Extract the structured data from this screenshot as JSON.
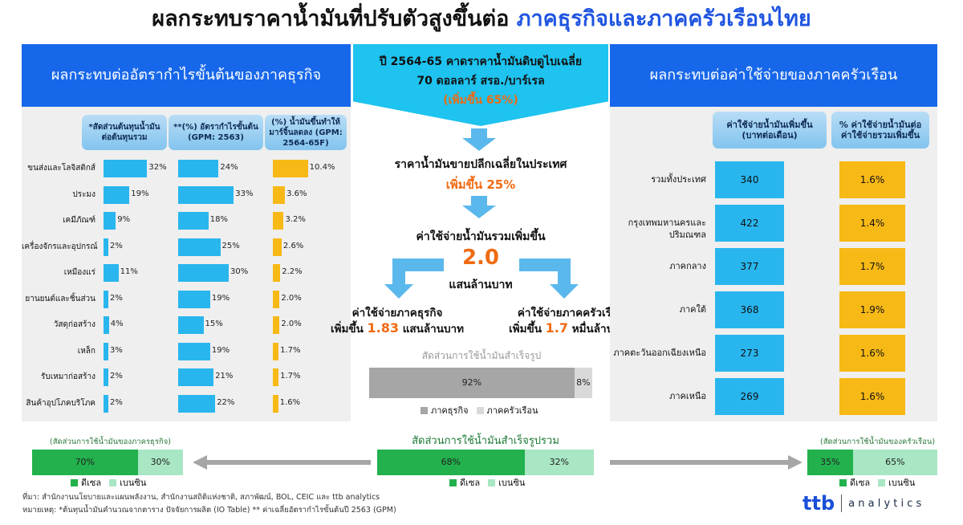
{
  "title": {
    "part1": "ผลกระทบราคาน้ำมันที่ปรับตัวสูงขึ้นต่อ",
    "part2": "ภาคธุรกิจและภาคครัวเรือนไทย"
  },
  "left_panel": {
    "header": "ผลกระทบต่ออัตรากำไรขั้นต้นของภาคธุรกิจ",
    "col1": "*สัดส่วนต้นทุนน้ำมันต่อต้นทุนรวม",
    "col2": "**(%) อัตรากำไรขั้นต้น (GPM: 2563)",
    "col3": "(%) น้ำมันขึ้นทำให้มาร์จิ้นลดลง (GPM: 2564-65F)"
  },
  "right_panel": {
    "header": "ผลกระทบต่อค่าใช้จ่ายของภาคครัวเรือน",
    "col1": "ค่าใช้จ่ายน้ำมันเพิ่มขึ้น (บาทต่อเดือน)",
    "col2": "% ค่าใช้จ่ายน้ำมันต่อค่าใช้จ่ายรวมเพิ่มขึ้น"
  },
  "center": {
    "box_line1": "ปี 2564-65 คาดราคาน้ำมันดิบดูไบเฉลี่ย",
    "box_line2": "70 ดอลลาร์ สรอ./บาร์เรล",
    "box_line3": "(เพิ่มขึ้น 65%)",
    "retail_line1": "ราคาน้ำมันขายปลีกเฉลี่ยในประเทศ",
    "retail_line2": "เพิ่มขึ้น 25%",
    "total_line1": "ค่าใช้จ่ายน้ำมันรวมเพิ่มขึ้น",
    "total_value": "2.0",
    "total_unit": "แสนล้านบาท",
    "biz_line1": "ค่าใช้จ่ายภาคธุรกิจ",
    "biz_prefix": "เพิ่มขึ้น",
    "biz_value": "1.83",
    "biz_unit": "แสนล้านบาท",
    "hh_line1": "ค่าใช้จ่ายภาคครัวเรือน",
    "hh_prefix": "เพิ่มขึ้น",
    "hh_value": "1.7",
    "hh_unit": "หมื่นล้านบาท"
  },
  "bottom": {
    "left_caption": "(สัดส่วนการใช้น้ำมันของภาครธุรกิจ)",
    "right_caption": "(สัดส่วนการใช้น้ำมันของครัวเรือน)"
  },
  "footer": {
    "source": "ที่มา: สำนักงานนโยบายและแผนพลังงาน, สำนักงานสถิติแห่งชาติ, สภาพัฒน์, BOL, CEIC และ ttb analytics",
    "note": "หมายเหตุ:  *ต้นทุนน้ำมันคำนวณจากตาราง ปัจจัยการผลิต (IO Table)  ** ค่าเฉลี่ยอัตรากำไรขั้นต้นปี 2563  (GPM)"
  },
  "logo": {
    "brand": "ttb",
    "text": "a n a l y t i c s"
  },
  "colors": {
    "blue_header": "#1767ea",
    "cyan": "#29b6ee",
    "yellow": "#f7b916",
    "orange": "#ef6b12",
    "green_dark": "#22b14c",
    "green_light": "#a8e6c4",
    "gray_dark": "#a6a6a6",
    "gray_light": "#d9d9d9"
  },
  "chart_data": [
    {
      "type": "table",
      "categories": [
        "ขนส่งและโลจิสติกส์",
        "ประมง",
        "เคมีภัณฑ์",
        "เครื่องจักรและอุปกรณ์",
        "เหมืองแร่",
        "ยานยนต์และชิ้นส่วน",
        "วัสดุก่อสร้าง",
        "เหล็ก",
        "รับเหมาก่อสร้าง",
        "สินค้าอุปโภคบริโภค"
      ],
      "series": [
        {
          "values": [
            32,
            19,
            9,
            2,
            11,
            2,
            4,
            3,
            2,
            2
          ],
          "labels": [
            "32%",
            "19%",
            "9%",
            "2%",
            "11%",
            "2%",
            "4%",
            "3%",
            "2%",
            "2%"
          ]
        },
        {
          "values": [
            24,
            33,
            18,
            25,
            30,
            19,
            15,
            19,
            21,
            22
          ],
          "labels": [
            "24%",
            "33%",
            "18%",
            "25%",
            "30%",
            "19%",
            "15%",
            "19%",
            "21%",
            "22%"
          ]
        },
        {
          "values": [
            10.4,
            3.6,
            3.2,
            2.6,
            2.2,
            2.0,
            2.0,
            1.7,
            1.7,
            1.6
          ],
          "labels": [
            "10.4%",
            "3.6%",
            "3.2%",
            "2.6%",
            "2.2%",
            "2.0%",
            "2.0%",
            "1.7%",
            "1.7%",
            "1.6%"
          ]
        }
      ]
    },
    {
      "type": "table",
      "categories": [
        "รวมทั้งประเทศ",
        "กรุงเทพมหานครและปริมณฑล",
        "ภาคกลาง",
        "ภาคใต้",
        "ภาคตะวันออกเฉียงเหนือ",
        "ภาคเหนือ"
      ],
      "series": [
        {
          "values": [
            340,
            422,
            377,
            368,
            273,
            269
          ],
          "labels": [
            "340",
            "422",
            "377",
            "368",
            "273",
            "269"
          ]
        },
        {
          "values": [
            1.6,
            1.4,
            1.7,
            1.9,
            1.6,
            1.6
          ],
          "labels": [
            "1.6%",
            "1.4%",
            "1.7%",
            "1.9%",
            "1.6%",
            "1.6%"
          ]
        }
      ]
    },
    {
      "type": "bar",
      "title": "สัดส่วนการใช้น้ำมันสำเร็จรูป",
      "series": [
        {
          "name": "ภาคธุรกิจ",
          "value": 92,
          "label": "92%"
        },
        {
          "name": "ภาคครัวเรือน",
          "value": 8,
          "label": "8%"
        }
      ],
      "legend": "bottom"
    },
    {
      "type": "bar",
      "title": "สัดส่วนการใช้น้ำมันสำเร็จรูปรวม",
      "series": [
        {
          "name": "ดีเซล",
          "value": 68,
          "label": "68%"
        },
        {
          "name": "เบนซิน",
          "value": 32,
          "label": "32%"
        }
      ],
      "legend": "bottom"
    },
    {
      "type": "bar",
      "series": [
        {
          "name": "ดีเซล",
          "value": 70,
          "label": "70%"
        },
        {
          "name": "เบนซิน",
          "value": 30,
          "label": "30%"
        }
      ],
      "legend": "bottom"
    },
    {
      "type": "bar",
      "series": [
        {
          "name": "ดีเซล",
          "value": 35,
          "label": "35%"
        },
        {
          "name": "เบนซิน",
          "value": 65,
          "label": "65%"
        }
      ],
      "legend": "bottom"
    }
  ]
}
